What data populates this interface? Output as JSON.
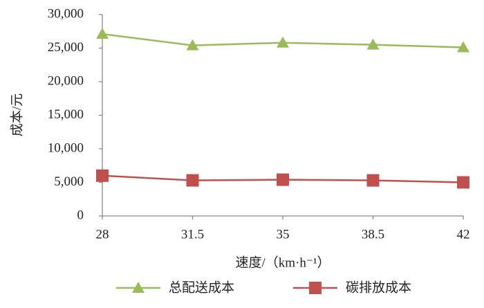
{
  "chart_data": {
    "type": "line",
    "x": [
      28,
      31.5,
      35,
      38.5,
      42
    ],
    "xlim": [
      28,
      42
    ],
    "xticks": [
      28,
      31.5,
      35,
      38.5,
      42
    ],
    "ylim": [
      0,
      30000
    ],
    "yticks": [
      0,
      {
        "value": 5000,
        "label": "5,000"
      },
      {
        "value": 10000,
        "label": "10,000"
      },
      {
        "value": 15000,
        "label": "15,000"
      },
      {
        "value": 20000,
        "label": "20,000"
      },
      {
        "value": 25000,
        "label": "25,000"
      },
      {
        "value": 30000,
        "label": "30,000"
      }
    ],
    "xlabel": "速度/（km·h⁻¹）",
    "ylabel": "成本/元",
    "grid": false,
    "legend": "bottom",
    "series": [
      {
        "name": "总配送成本",
        "color": "#9bbb59",
        "marker": "triangle",
        "values": [
          27100,
          25400,
          25800,
          25500,
          25100
        ]
      },
      {
        "name": "碳排放成本",
        "color": "#c0504d",
        "marker": "square",
        "values": [
          6000,
          5300,
          5400,
          5300,
          5000
        ]
      }
    ]
  }
}
